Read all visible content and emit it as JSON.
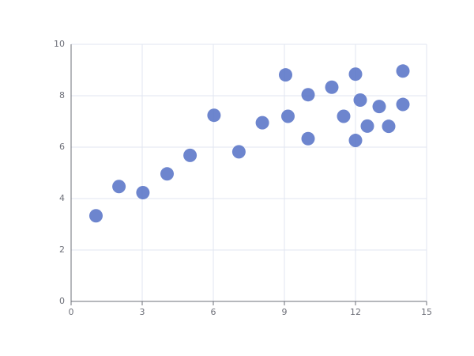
{
  "chart_data": {
    "type": "scatter",
    "x": [
      10.0,
      8.07,
      13.0,
      9.05,
      11.0,
      14.0,
      13.4,
      10.0,
      14.0,
      12.5,
      9.15,
      11.5,
      3.03,
      12.2,
      2.02,
      1.05,
      4.05,
      6.03,
      12.0,
      12.0,
      7.08,
      5.02
    ],
    "values": [
      8.04,
      6.95,
      7.58,
      8.81,
      8.33,
      7.66,
      6.81,
      6.33,
      8.96,
      6.82,
      7.2,
      7.2,
      4.23,
      7.83,
      4.47,
      3.33,
      4.96,
      7.24,
      6.26,
      8.84,
      5.82,
      5.68
    ],
    "color": "#5470c6",
    "xlim": [
      0,
      15
    ],
    "xticks": [
      0,
      3,
      6,
      9,
      12,
      15
    ],
    "ylim": [
      0,
      10
    ],
    "yticks": [
      0,
      2,
      4,
      6,
      8,
      10
    ],
    "grid": true
  }
}
